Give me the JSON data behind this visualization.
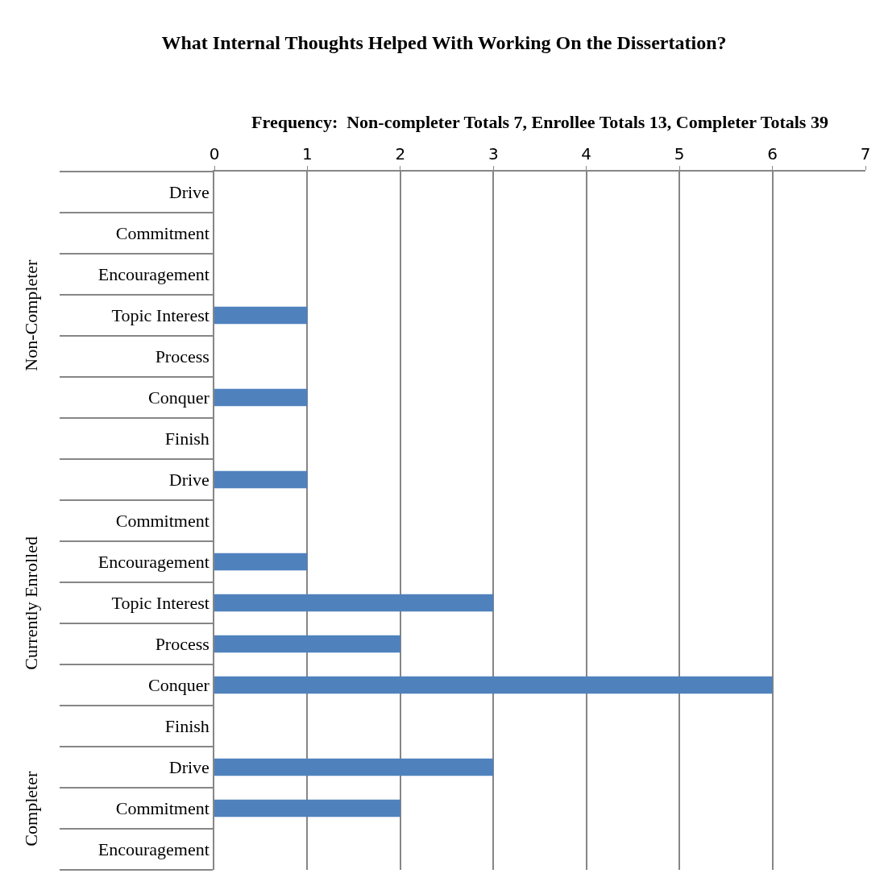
{
  "chart_data": {
    "type": "bar",
    "orientation": "horizontal",
    "title": "What Internal Thoughts Helped With Working On the Dissertation?",
    "xlabel": "Frequency:  Non-completer Totals 7, Enrollee Totals 13, Completer Totals 39",
    "categories": [
      "Drive",
      "Commitment",
      "Encouragement",
      "Topic Interest",
      "Process",
      "Conquer",
      "Finish",
      "Drive",
      "Commitment",
      "Encouragement",
      "Topic Interest",
      "Process",
      "Conquer",
      "Finish",
      "Drive",
      "Commitment",
      "Encouragement"
    ],
    "values": [
      0,
      0,
      0,
      1,
      0,
      1,
      0,
      1,
      0,
      1,
      3,
      2,
      6,
      0,
      3,
      2,
      0
    ],
    "color": "#4f81bd",
    "xlim": [
      0,
      7
    ],
    "xticks": [
      0,
      1,
      2,
      3,
      4,
      5,
      6,
      7
    ],
    "grid": "x",
    "annotations": [
      "Non-Completer",
      "Currently Enrolled",
      "Completer"
    ]
  }
}
